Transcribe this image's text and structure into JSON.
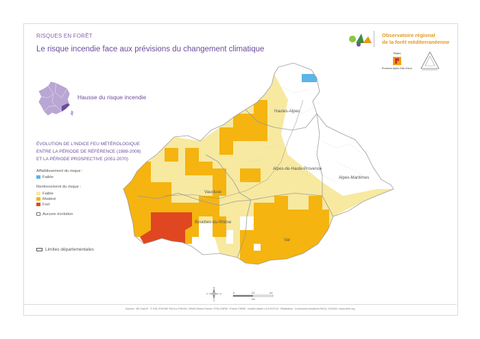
{
  "header": {
    "kicker": "RISQUES EN FORÊT",
    "title": "Le risque incendie face aux prévisions du changement climatique"
  },
  "logos": {
    "observatoire_line1": "Observatoire régional",
    "observatoire_line2": "de la forêt méditerranéenne",
    "region_top": "Région",
    "region_bottom": "Provence-Alpes-Côte d'Azur"
  },
  "inset": {
    "label": "Hausse du risque incendie"
  },
  "legend": {
    "title_lines": [
      "ÉVOLUTION DE L'INDICE FEU MÉTÉROLOGIQUE",
      "ENTRE LA PÉRIODE DE RÉFÉRENCE (1989-2008)",
      "ET LA PÉRIODE PROSPECTIVE (2051-2070)"
    ],
    "weakening_head": "Affaiblissement du risque :",
    "weakening_items": [
      {
        "label": "Faible",
        "color": "#5bb5e6"
      }
    ],
    "strengthening_head": "Renforcement du risque :",
    "strengthening_items": [
      {
        "label": "Faible",
        "color": "#f7e9a0"
      },
      {
        "label": "Modéré",
        "color": "#f5b40f"
      },
      {
        "label": "Fort",
        "color": "#e0461f"
      }
    ],
    "no_change": "Aucune évolution",
    "limits": "Limites départementales"
  },
  "map": {
    "departments": [
      "Hautes-Alpes",
      "Alpes-de-Haute-Provence",
      "Alpes-Maritimes",
      "Vaucluse",
      "Bouches-du-Rhône",
      "Var"
    ],
    "colors": {
      "faible": "#f7e9a0",
      "modere": "#f5b40f",
      "fort": "#e0461f",
      "affaiblissement": "#5bb5e6",
      "aucune": "#ffffff",
      "border": "#9a9a9a"
    }
  },
  "compass": {
    "n": "N",
    "s": "S",
    "e": "E",
    "o": "O"
  },
  "scale": {
    "labels": [
      "0",
      "20",
      "40"
    ],
    "unit": "km"
  },
  "footer": "Sources : BD Carto® - © IGN, IFN/ONF PACA e-PNHGE, DRIAS Météo-France / IPSL/CNRM - France CNRM - modèle Aladin v.4.6 RCP4.5 - Réalisation : Communes forestières PACA, 12/2016 • www.ofme.org"
}
